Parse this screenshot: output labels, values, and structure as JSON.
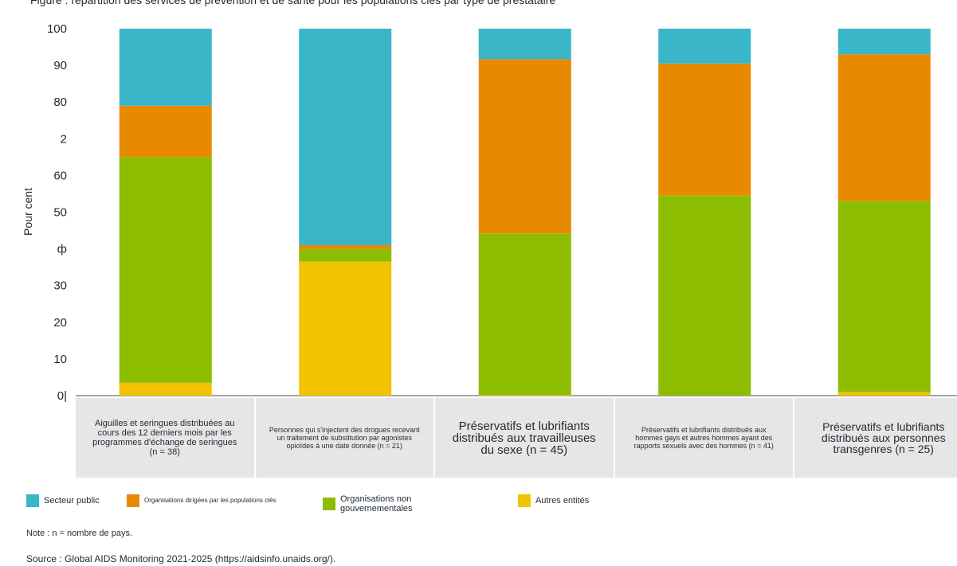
{
  "chart_data": {
    "type": "bar",
    "stacked": true,
    "title": "",
    "xlabel": "",
    "ylabel": "Pour cent",
    "ylim": [
      0,
      100
    ],
    "y_tick_labels": [
      "0|",
      "10",
      "20",
      "30",
      "ф",
      "50",
      "60",
      "2",
      "80",
      "90",
      "100"
    ],
    "categories": [
      "Aiguilles et seringues distribuées au cours des 12 derniers mois par les programmes d'échange de seringues (n = 38)",
      "Personnes qui s'injectent des drogues recevant un traitement de substitution par agonistes opioïdes à une date donnée (n = 21)",
      "Préservatifs et lubrifiants distribués aux travailleuses du sexe (n = 45)",
      "Préservatifs et lubrifiants distribués aux hommes gays et autres hommes ayant des rapports sexuels avec des hommes (n = 41)",
      "Préservatifs et lubrifiants distribués aux personnes transgenres (n = 25)"
    ],
    "series": [
      {
        "name": "Autres entités",
        "color": "#f2c300",
        "values": [
          3.5,
          36.5,
          0.2,
          0,
          1.0
        ]
      },
      {
        "name": "Organisations non gouvernementales",
        "color": "#8dbd00",
        "values": [
          61.5,
          3.5,
          44.0,
          54.5,
          52.0
        ]
      },
      {
        "name": "Organisations dirigées par les populations clés",
        "color": "#e88a00",
        "values": [
          14.0,
          1.0,
          47.5,
          36.0,
          40.0
        ]
      },
      {
        "name": "Secteur public",
        "color": "#39b6c8",
        "values": [
          21.0,
          59.0,
          8.3,
          9.5,
          7.0
        ]
      }
    ],
    "legend_position": "bottom-left",
    "grid": false
  },
  "legend_labels": {
    "public": "Secteur public",
    "key_populations": "Organisations dirigées par les populations clés",
    "ngo": "Organisations non gouvernementales",
    "other": "Autres entités"
  },
  "note": "Note : n = nombre de pays.",
  "source": "Source : Global AIDS Monitoring 2021-2025 (https://aidsinfo.unaids.org/).",
  "top_text": "Figure : répartition des services de prévention et de santé pour les populations clés par type de prestataire"
}
